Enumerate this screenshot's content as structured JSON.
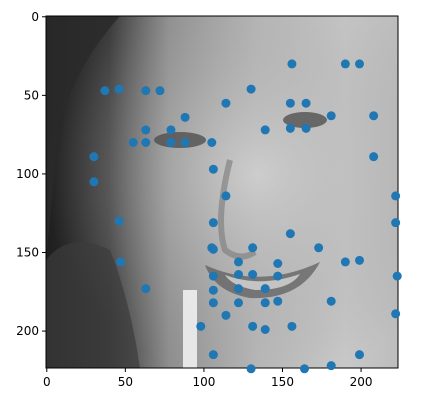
{
  "chart_data": {
    "type": "scatter",
    "title": "",
    "xlabel": "",
    "ylabel": "",
    "background": "grayscale face image",
    "x_range": [
      -0.5,
      223.5
    ],
    "y_range": [
      223.5,
      -0.5
    ],
    "y_inverted": true,
    "x_ticks": [
      0,
      50,
      100,
      150,
      200
    ],
    "y_ticks": [
      0,
      50,
      100,
      150,
      200
    ],
    "grid": false,
    "legend": "none",
    "marker_color": "#1f77b4",
    "points": [
      [
        37,
        47
      ],
      [
        46,
        46
      ],
      [
        63,
        47
      ],
      [
        72,
        47
      ],
      [
        130,
        46
      ],
      [
        156,
        30
      ],
      [
        190,
        30
      ],
      [
        199,
        30
      ],
      [
        114,
        55
      ],
      [
        155,
        55
      ],
      [
        165,
        55
      ],
      [
        88,
        64
      ],
      [
        181,
        63
      ],
      [
        208,
        63
      ],
      [
        63,
        72
      ],
      [
        79,
        72
      ],
      [
        139,
        72
      ],
      [
        155,
        71
      ],
      [
        165,
        71
      ],
      [
        55,
        80
      ],
      [
        63,
        80
      ],
      [
        79,
        80
      ],
      [
        88,
        80
      ],
      [
        105,
        80
      ],
      [
        30,
        89
      ],
      [
        208,
        89
      ],
      [
        106,
        97
      ],
      [
        30,
        105
      ],
      [
        114,
        114
      ],
      [
        222,
        114
      ],
      [
        46,
        130
      ],
      [
        106,
        131
      ],
      [
        222,
        131
      ],
      [
        155,
        138
      ],
      [
        105,
        147
      ],
      [
        106,
        148
      ],
      [
        131,
        147
      ],
      [
        173,
        147
      ],
      [
        47,
        156
      ],
      [
        122,
        156
      ],
      [
        147,
        157
      ],
      [
        190,
        156
      ],
      [
        199,
        155
      ],
      [
        106,
        165
      ],
      [
        122,
        164
      ],
      [
        131,
        164
      ],
      [
        147,
        165
      ],
      [
        223,
        165
      ],
      [
        63,
        173
      ],
      [
        106,
        174
      ],
      [
        122,
        173
      ],
      [
        139,
        173
      ],
      [
        106,
        182
      ],
      [
        122,
        182
      ],
      [
        139,
        182
      ],
      [
        147,
        181
      ],
      [
        181,
        181
      ],
      [
        114,
        190
      ],
      [
        222,
        189
      ],
      [
        98,
        197
      ],
      [
        131,
        197
      ],
      [
        139,
        199
      ],
      [
        156,
        197
      ],
      [
        106,
        215
      ],
      [
        199,
        215
      ],
      [
        130,
        224
      ],
      [
        164,
        224
      ],
      [
        181,
        222
      ]
    ]
  }
}
